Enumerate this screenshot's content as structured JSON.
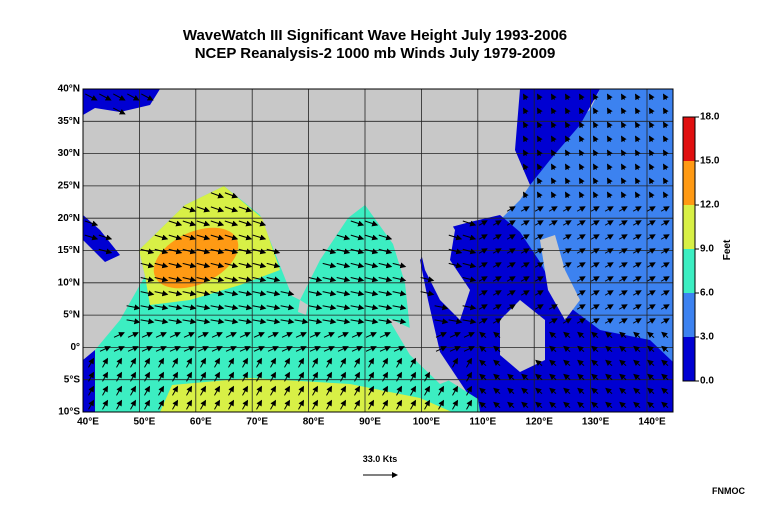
{
  "title": [
    "WaveWatch III Significant Wave Height July 1993-2006",
    "NCEP Reanalysis-2 1000 mb Winds July 1979-2009"
  ],
  "map": {
    "lon_ticks": [
      {
        "value": 40,
        "label": "40°E"
      },
      {
        "value": 50,
        "label": "50°E"
      },
      {
        "value": 60,
        "label": "60°E"
      },
      {
        "value": 70,
        "label": "70°E"
      },
      {
        "value": 80,
        "label": "80°E"
      },
      {
        "value": 90,
        "label": "90°E"
      },
      {
        "value": 100,
        "label": "100°E"
      },
      {
        "value": 110,
        "label": "110°E"
      },
      {
        "value": 120,
        "label": "120°E"
      },
      {
        "value": 130,
        "label": "130°E"
      },
      {
        "value": 140,
        "label": "140°E"
      }
    ],
    "lat_ticks": [
      {
        "value": 40,
        "label": "40°N"
      },
      {
        "value": 35,
        "label": "35°N"
      },
      {
        "value": 30,
        "label": "30°N"
      },
      {
        "value": 25,
        "label": "25°N"
      },
      {
        "value": 20,
        "label": "20°N"
      },
      {
        "value": 15,
        "label": "15°N"
      },
      {
        "value": 10,
        "label": "10°N"
      },
      {
        "value": 5,
        "label": "5°N"
      },
      {
        "value": 0,
        "label": "0°"
      },
      {
        "value": -5,
        "label": "5°S"
      },
      {
        "value": -10,
        "label": "10°S"
      }
    ]
  },
  "colorbar": {
    "label": "Feet",
    "ticks": [
      {
        "value": 0,
        "label": "0.0"
      },
      {
        "value": 3,
        "label": "3.0"
      },
      {
        "value": 6,
        "label": "6.0"
      },
      {
        "value": 9,
        "label": "9.0"
      },
      {
        "value": 12,
        "label": "12.0"
      },
      {
        "value": 15,
        "label": "15.0"
      },
      {
        "value": 18,
        "label": "18.0"
      }
    ],
    "colors": [
      "#0000d2",
      "#3c82f0",
      "#3ceec2",
      "#d8f046",
      "#ff9a14",
      "#e01010"
    ]
  },
  "reference_vector": "33.0 Kts",
  "credit": "FNMOC"
}
